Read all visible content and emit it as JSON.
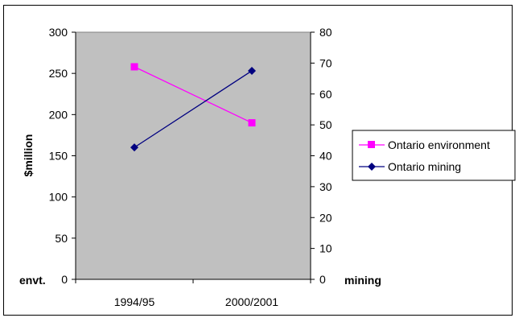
{
  "chart_data": {
    "type": "line",
    "categories": [
      "1994/95",
      "2000/2001"
    ],
    "series": [
      {
        "name": "Ontario environment",
        "axis": "left",
        "values": [
          258,
          190
        ],
        "color": "#ff00ff",
        "marker": "square"
      },
      {
        "name": "Ontario mining",
        "axis": "right",
        "values": [
          42.7,
          67.5
        ],
        "color": "#000080",
        "marker": "diamond"
      }
    ],
    "ylabel": "$million",
    "left_axis": {
      "label": "envt.",
      "ylim": [
        0,
        300
      ],
      "ticks": [
        0,
        50,
        100,
        150,
        200,
        250,
        300
      ]
    },
    "right_axis": {
      "label": "mining",
      "ylim": [
        0,
        80
      ],
      "ticks": [
        0,
        10,
        20,
        30,
        40,
        50,
        60,
        70,
        80
      ]
    },
    "plot_background": "#c0c0c0",
    "grid": false,
    "legend_position": "right"
  }
}
